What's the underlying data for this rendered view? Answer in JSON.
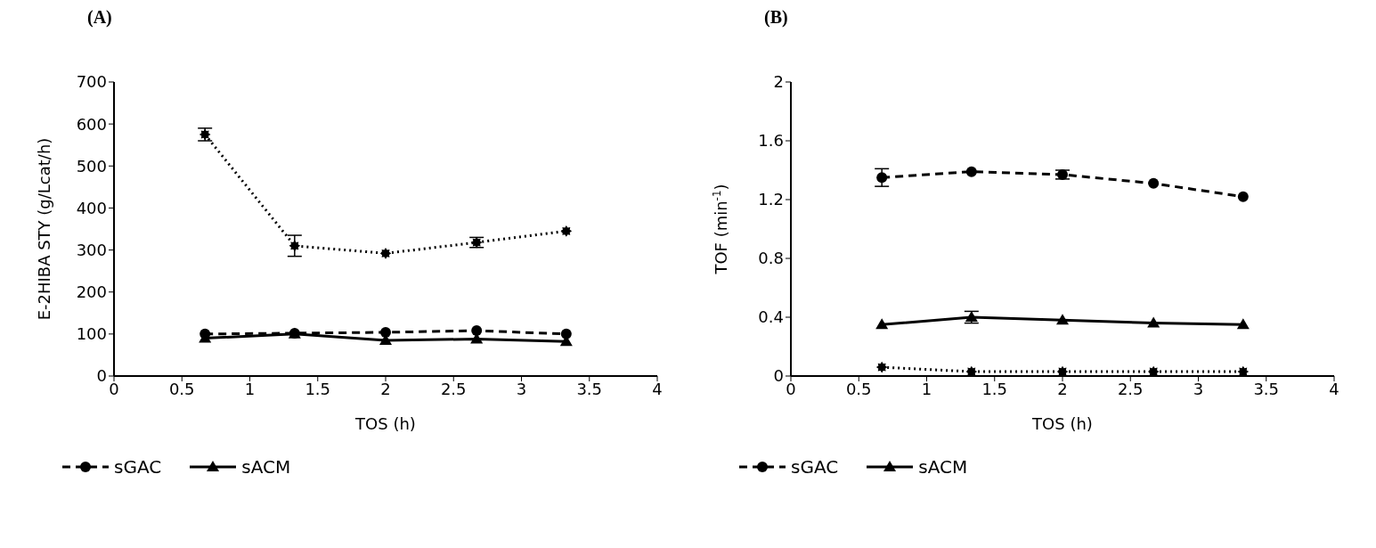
{
  "chart_data": [
    {
      "type": "line",
      "title": "(A)",
      "xlabel": "TOS (h)",
      "ylabel": "E-2HIBA STY (g/Lcat/h)",
      "x": [
        0.67,
        1.33,
        2,
        2.67,
        3.33
      ],
      "xlim": [
        0,
        4
      ],
      "xticks": [
        0,
        0.5,
        1,
        1.5,
        2,
        2.5,
        3,
        3.5,
        4
      ],
      "ylim": [
        0,
        700
      ],
      "yticks": [
        0,
        100,
        200,
        300,
        400,
        500,
        600,
        700
      ],
      "legend": "bottom",
      "series": [
        {
          "name": "sGAC",
          "color": "#000000",
          "values": [
            100,
            102,
            104,
            108,
            100
          ],
          "line_style": "dashed",
          "marker": "circle"
        },
        {
          "name": "sACM",
          "color": "#000000",
          "values": [
            90,
            100,
            85,
            88,
            82
          ],
          "line_style": "solid",
          "marker": "triangle"
        },
        {
          "color": "#000000",
          "values": [
            575,
            310,
            292,
            318,
            345
          ],
          "errors": [
            15,
            25,
            null,
            12,
            null
          ],
          "line_style": "dotted",
          "marker": "star"
        }
      ]
    },
    {
      "type": "line",
      "title": "(B)",
      "xlabel": "TOS (h)",
      "ylabel": "TOF (min$^{-1}$)",
      "x": [
        0.67,
        1.33,
        2,
        2.67,
        3.33
      ],
      "xlim": [
        0,
        4
      ],
      "xticks": [
        0,
        0.5,
        1,
        1.5,
        2,
        2.5,
        3,
        3.5,
        4
      ],
      "ylim": [
        0,
        2
      ],
      "yticks": [
        0,
        0.4,
        0.8,
        1.2,
        1.6,
        2
      ],
      "legend": "bottom",
      "series": [
        {
          "name": "sGAC",
          "color": "#000000",
          "values": [
            1.35,
            1.39,
            1.37,
            1.31,
            1.22
          ],
          "errors": [
            0.06,
            null,
            0.03,
            null,
            null
          ],
          "line_style": "dashed",
          "marker": "circle"
        },
        {
          "name": "sACM",
          "color": "#000000",
          "values": [
            0.35,
            0.4,
            0.38,
            0.36,
            0.35
          ],
          "errors": [
            null,
            0.04,
            null,
            null,
            null
          ],
          "line_style": "solid",
          "marker": "triangle"
        },
        {
          "color": "#000000",
          "values": [
            0.06,
            0.03,
            0.03,
            0.03,
            0.03
          ],
          "line_style": "dotted",
          "marker": "star"
        }
      ]
    }
  ]
}
